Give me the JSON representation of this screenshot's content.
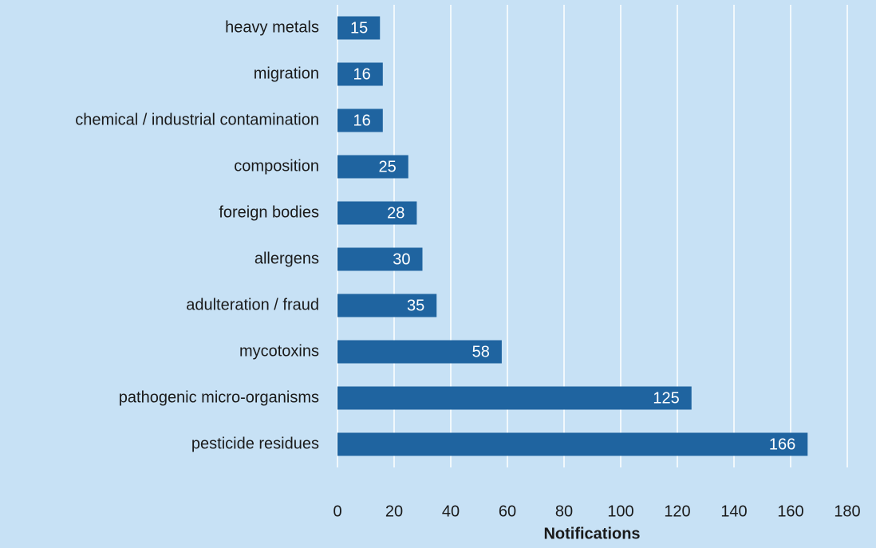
{
  "chart_data": {
    "type": "bar",
    "orientation": "horizontal",
    "categories": [
      "heavy metals",
      "migration",
      "chemical / industrial contamination",
      "composition",
      "foreign bodies",
      "allergens",
      "adulteration / fraud",
      "mycotoxins",
      "pathogenic micro-organisms",
      "pesticide residues"
    ],
    "values": [
      15,
      16,
      16,
      25,
      28,
      30,
      35,
      58,
      125,
      166
    ],
    "color": "#1f64a0",
    "x_label": "Notifications",
    "xlim": [
      0,
      180
    ],
    "xticks": [
      0,
      20,
      40,
      60,
      80,
      100,
      120,
      140,
      160,
      180
    ],
    "grid": true
  }
}
